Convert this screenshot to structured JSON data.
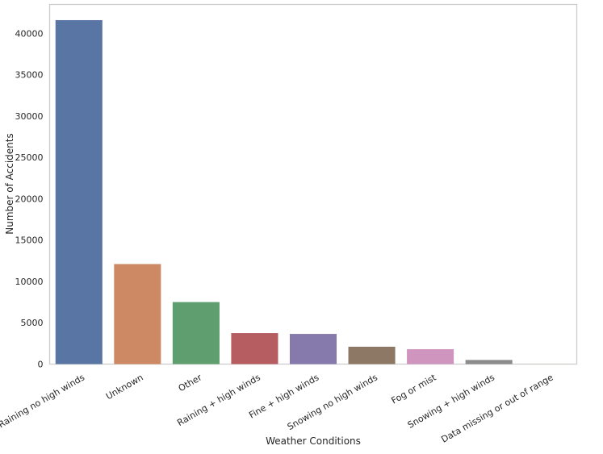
{
  "chart_data": {
    "type": "bar",
    "title": "",
    "xlabel": "Weather Conditions",
    "ylabel": "Number of Accidents",
    "ylim": [
      0,
      43500
    ],
    "yticks": [
      0,
      5000,
      10000,
      15000,
      20000,
      25000,
      30000,
      35000,
      40000
    ],
    "grid": false,
    "legend": "none",
    "categories": [
      "Raining no high winds",
      "Unknown",
      "Other",
      "Raining + high winds",
      "Fine + high winds",
      "Snowing no high winds",
      "Fog or mist",
      "Snowing + high winds",
      "Data missing or out of range"
    ],
    "values": [
      41600,
      12100,
      7500,
      3750,
      3650,
      2100,
      1800,
      500,
      10
    ],
    "colors": [
      "#5975a4",
      "#cc8963",
      "#5f9e6e",
      "#b55d60",
      "#857aab",
      "#8d7866",
      "#d095bf",
      "#8c8c8c",
      "#c1b37f"
    ]
  }
}
